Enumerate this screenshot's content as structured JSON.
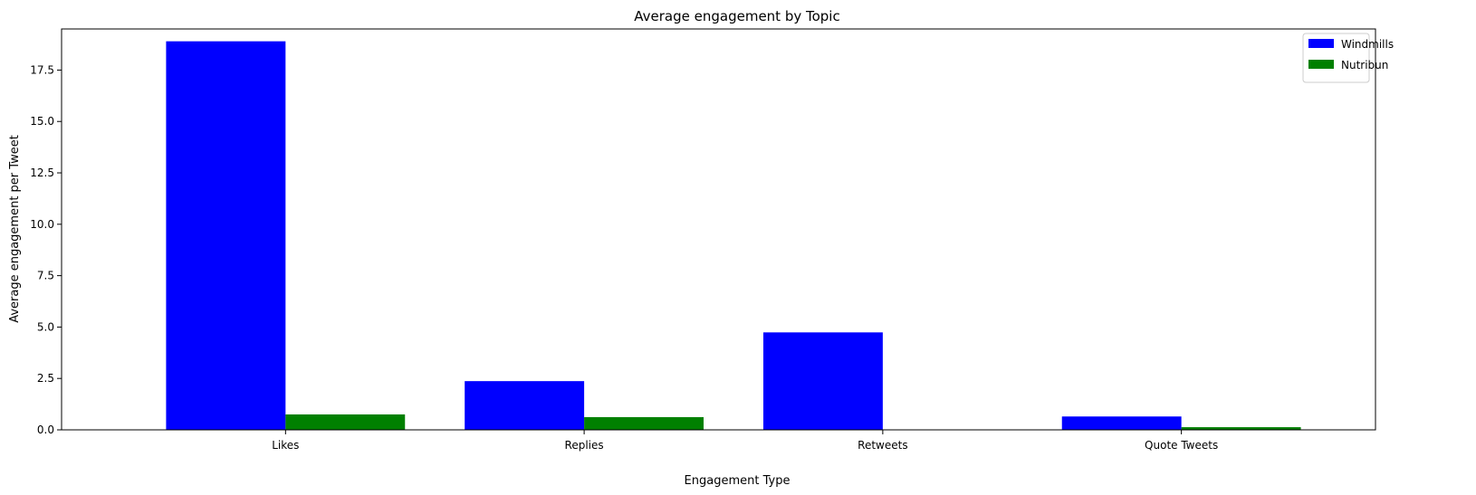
{
  "chart_data": {
    "type": "bar",
    "title": "Average engagement by Topic",
    "xlabel": "Engagement Type",
    "ylabel": "Average engagement per Tweet",
    "categories": [
      "Likes",
      "Replies",
      "Retweets",
      "Quote Tweets"
    ],
    "series": [
      {
        "name": "Windmills",
        "color": "#0000ff",
        "values": [
          18.9,
          2.37,
          4.74,
          0.65
        ]
      },
      {
        "name": "Nutribun",
        "color": "#008000",
        "values": [
          0.75,
          0.62,
          0.0,
          0.13
        ]
      }
    ],
    "ylim": [
      0,
      19.5
    ],
    "yticks": [
      0.0,
      2.5,
      5.0,
      7.5,
      10.0,
      12.5,
      15.0,
      17.5
    ],
    "ytick_labels": [
      "0.0",
      "2.5",
      "5.0",
      "7.5",
      "10.0",
      "12.5",
      "15.0",
      "17.5"
    ],
    "legend_position": "top-right",
    "grid": false
  }
}
